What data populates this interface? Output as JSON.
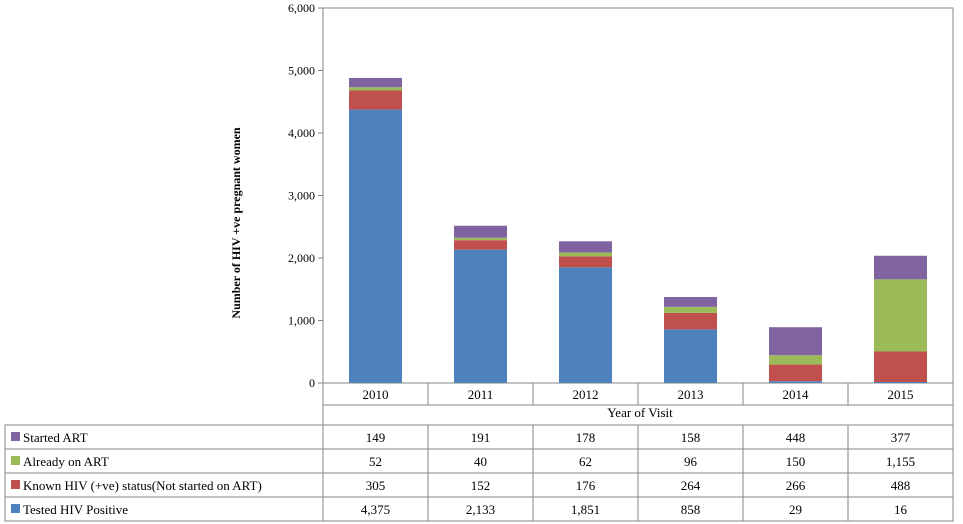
{
  "chart_data": {
    "type": "bar",
    "stacked": true,
    "title": "",
    "xlabel": "Year of Visit",
    "ylabel": "Number  of HIV +ve pregnant women",
    "ylim": [
      0,
      6000
    ],
    "yticks": [
      "0",
      "1,000",
      "2,000",
      "3,000",
      "4,000",
      "5,000",
      "6,000"
    ],
    "ytick_values": [
      0,
      1000,
      2000,
      3000,
      4000,
      5000,
      6000
    ],
    "grid": false,
    "categories": [
      "2010",
      "2011",
      "2012",
      "2013",
      "2014",
      "2015"
    ],
    "series": [
      {
        "name": "Tested HIV Positive",
        "color": "#4f81bd",
        "values": [
          4375,
          2133,
          1851,
          858,
          29,
          16
        ],
        "labels": [
          "4,375",
          "2,133",
          "1,851",
          "858",
          "29",
          "16"
        ]
      },
      {
        "name": "Known HIV   (+ve)  status(Not started on ART)",
        "color": "#c0504d",
        "values": [
          305,
          152,
          176,
          264,
          266,
          488
        ],
        "labels": [
          "305",
          "152",
          "176",
          "264",
          "266",
          "488"
        ]
      },
      {
        "name": "Already on ART",
        "color": "#9bbb59",
        "values": [
          52,
          40,
          62,
          96,
          150,
          1155
        ],
        "labels": [
          "52",
          "40",
          "62",
          "96",
          "150",
          "1,155"
        ]
      },
      {
        "name": "Started ART",
        "color": "#8064a2",
        "values": [
          149,
          191,
          178,
          158,
          448,
          377
        ],
        "labels": [
          "149",
          "191",
          "178",
          "158",
          "448",
          "377"
        ]
      }
    ],
    "table_row_order": [
      "Started ART",
      "Already on ART",
      "Known HIV   (+ve)  status(Not started on ART)",
      "Tested HIV Positive"
    ],
    "legend": "data-table"
  }
}
